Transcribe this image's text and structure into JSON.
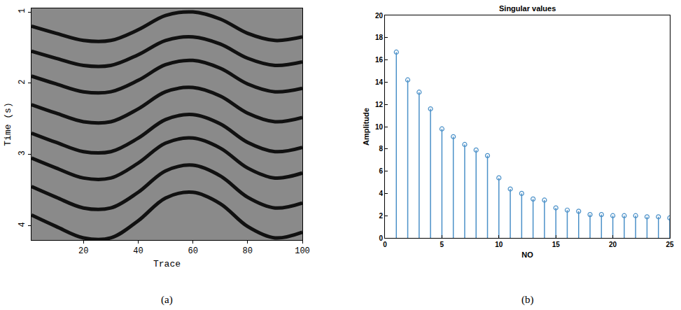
{
  "chart_data": [
    {
      "type": "line",
      "label": "(a)",
      "x_label": "Trace",
      "y_label": "Time (s)",
      "x": [
        1,
        10,
        20,
        30,
        40,
        50,
        60,
        70,
        80,
        90,
        100
      ],
      "color": "#111111",
      "series": [
        {
          "values": [
            1.2,
            1.3,
            1.4,
            1.4,
            1.25,
            1.05,
            1.0,
            1.1,
            1.3,
            1.4,
            1.35
          ]
        },
        {
          "values": [
            1.55,
            1.65,
            1.75,
            1.75,
            1.6,
            1.4,
            1.35,
            1.45,
            1.65,
            1.75,
            1.7
          ]
        },
        {
          "values": [
            1.9,
            2.01,
            2.12,
            2.12,
            1.96,
            1.74,
            1.68,
            1.79,
            2.01,
            2.12,
            2.07
          ]
        },
        {
          "values": [
            2.3,
            2.42,
            2.54,
            2.54,
            2.36,
            2.12,
            2.06,
            2.18,
            2.42,
            2.54,
            2.48
          ]
        },
        {
          "values": [
            2.7,
            2.83,
            2.96,
            2.96,
            2.77,
            2.51,
            2.44,
            2.57,
            2.83,
            2.96,
            2.9
          ]
        },
        {
          "values": [
            3.05,
            3.19,
            3.33,
            3.33,
            3.12,
            2.84,
            2.77,
            2.91,
            3.19,
            3.33,
            3.26
          ]
        },
        {
          "values": [
            3.45,
            3.6,
            3.75,
            3.75,
            3.53,
            3.23,
            3.15,
            3.3,
            3.6,
            3.75,
            3.68
          ]
        },
        {
          "values": [
            3.85,
            4.01,
            4.17,
            4.17,
            3.93,
            3.61,
            3.53,
            3.69,
            4.01,
            4.17,
            4.09
          ]
        }
      ],
      "xlim": [
        1,
        100
      ],
      "xticks": [
        20,
        40,
        60,
        80,
        100
      ],
      "ylim": [
        4.2,
        0.95
      ],
      "yticks": [
        1,
        2,
        3,
        4
      ],
      "grid": false
    },
    {
      "type": "stem",
      "label": "(b)",
      "title": "Singular values",
      "x_label": "NO",
      "y_label": "Amplitude",
      "x": [
        1,
        2,
        3,
        4,
        5,
        6,
        7,
        8,
        9,
        10,
        11,
        12,
        13,
        14,
        15,
        16,
        17,
        18,
        19,
        20,
        21,
        22,
        23,
        24,
        25
      ],
      "values": [
        16.7,
        14.2,
        13.1,
        11.6,
        9.8,
        9.1,
        8.4,
        7.9,
        7.4,
        5.4,
        4.4,
        4.0,
        3.5,
        3.4,
        2.7,
        2.5,
        2.4,
        2.1,
        2.1,
        2.0,
        2.0,
        2.0,
        1.9,
        1.9,
        1.8
      ],
      "color": "#4a90c8",
      "marker": "circle-open",
      "xlim": [
        0,
        25
      ],
      "xticks": [
        0,
        5,
        10,
        15,
        20,
        25
      ],
      "ylim": [
        0,
        20
      ],
      "yticks": [
        0,
        2,
        4,
        6,
        8,
        10,
        12,
        14,
        16,
        18,
        20
      ],
      "grid": false
    }
  ]
}
